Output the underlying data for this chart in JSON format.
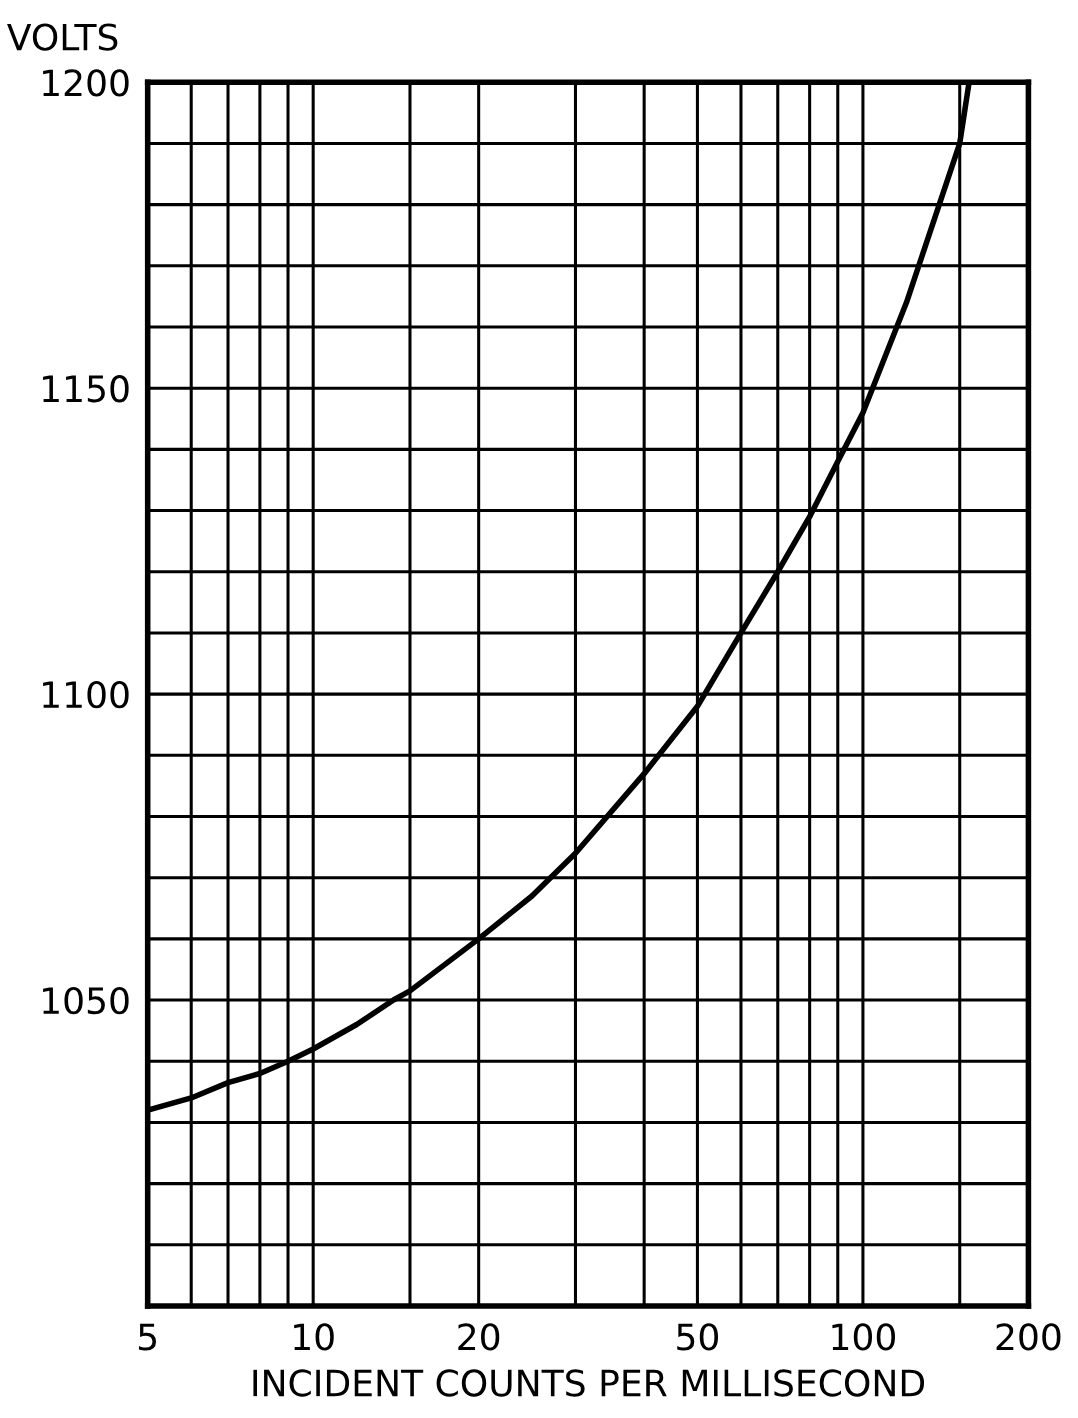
{
  "chart_data": {
    "type": "line",
    "xlabel": "INCIDENT COUNTS PER MILLISECOND",
    "ylabel": "VOLTS",
    "x": [
      5,
      6,
      7,
      8,
      9,
      10,
      12,
      14,
      15,
      20,
      25,
      30,
      40,
      50,
      60,
      70,
      80,
      90,
      100,
      120,
      150,
      156
    ],
    "series": [
      {
        "color": "#000000",
        "values": [
          1032,
          1034,
          1036.5,
          1038,
          1040,
          1042,
          1046,
          1050,
          1051.5,
          1060,
          1067,
          1074,
          1087,
          1098,
          1110,
          1120,
          1129,
          1138,
          1146,
          1164,
          1190,
          1200
        ]
      }
    ],
    "log": "x",
    "xlim": [
      5,
      200
    ],
    "ylim": [
      1000,
      1200
    ],
    "xticks": [
      5,
      {
        "value": 6,
        "label": null
      },
      {
        "value": 7,
        "label": null
      },
      {
        "value": 8,
        "label": null
      },
      {
        "value": 9,
        "label": null
      },
      10,
      {
        "value": 15,
        "label": null
      },
      20,
      {
        "value": 30,
        "label": null
      },
      {
        "value": 40,
        "label": null
      },
      50,
      {
        "value": 60,
        "label": null
      },
      {
        "value": 70,
        "label": null
      },
      {
        "value": 80,
        "label": null
      },
      {
        "value": 90,
        "label": null
      },
      100,
      {
        "value": 150,
        "label": null
      },
      200
    ],
    "yticks": [
      {
        "value": 1000,
        "label": null
      },
      {
        "value": 1010,
        "label": null
      },
      {
        "value": 1020,
        "label": null
      },
      {
        "value": 1030,
        "label": null
      },
      {
        "value": 1040,
        "label": null
      },
      1050,
      {
        "value": 1060,
        "label": null
      },
      {
        "value": 1070,
        "label": null
      },
      {
        "value": 1080,
        "label": null
      },
      {
        "value": 1090,
        "label": null
      },
      1100,
      {
        "value": 1110,
        "label": null
      },
      {
        "value": 1120,
        "label": null
      },
      {
        "value": 1130,
        "label": null
      },
      {
        "value": 1140,
        "label": null
      },
      1150,
      {
        "value": 1160,
        "label": null
      },
      {
        "value": 1170,
        "label": null
      },
      {
        "value": 1180,
        "label": null
      },
      {
        "value": 1190,
        "label": null
      },
      1200
    ],
    "grid": true,
    "marker": "none",
    "line_style": "solid"
  }
}
